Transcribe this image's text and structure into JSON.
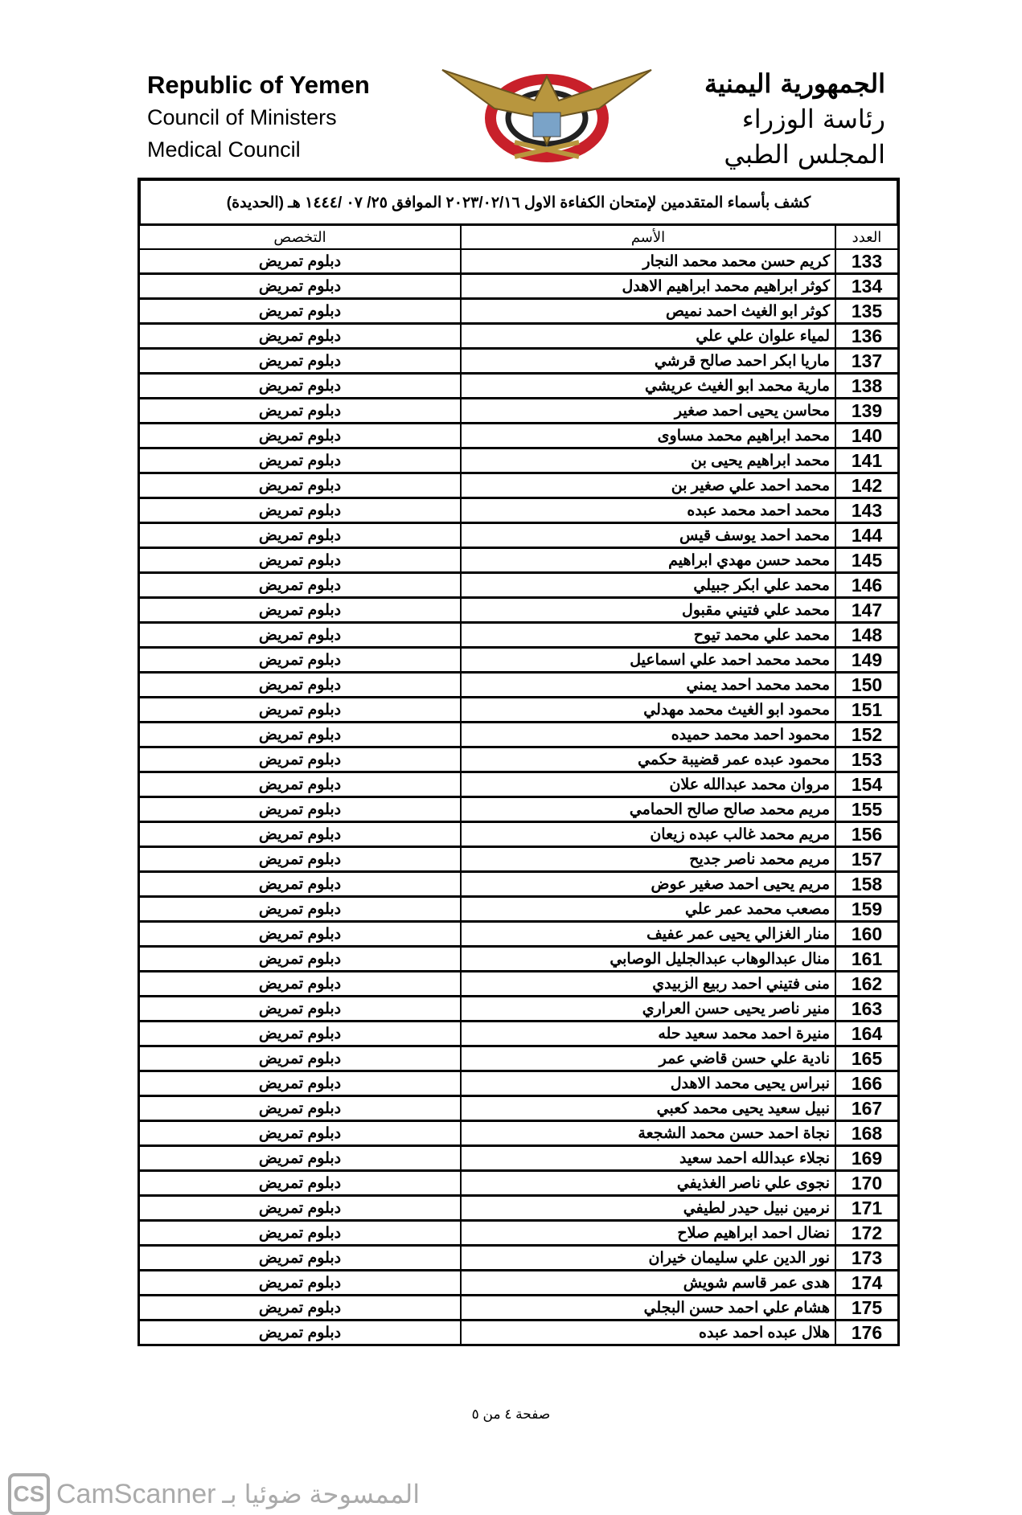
{
  "header": {
    "english": [
      "Republic of Yemen",
      "Council of Ministers",
      "Medical Council"
    ],
    "arabic": [
      "الجمهورية اليمنية",
      "رئاسة الوزراء",
      "المجلس الطبي"
    ],
    "emblem_icon": "yemen-eagle-emblem"
  },
  "title": "كشف بأسماء المتقدمين لإمتحان الكفاءة الاول ٢٠٢٣/٠٢/١٦ الموافق ٢٥/ ٠٧ /١٤٤٤ هـ (الحديدة)",
  "columns": {
    "number": "العدد",
    "name": "الأسم",
    "specialty": "التخصص"
  },
  "rows": [
    {
      "n": "133",
      "name": "كريم حسن محمد محمد النجار",
      "spec": "دبلوم تمريض"
    },
    {
      "n": "134",
      "name": "كوثر ابراهيم محمد ابراهيم الاهدل",
      "spec": "دبلوم تمريض"
    },
    {
      "n": "135",
      "name": "كوثر ابو الغيث احمد نميص",
      "spec": "دبلوم تمريض"
    },
    {
      "n": "136",
      "name": "لمياء علوان علي علي",
      "spec": "دبلوم تمريض"
    },
    {
      "n": "137",
      "name": "ماريا ابكر احمد صالح قرشي",
      "spec": "دبلوم تمريض"
    },
    {
      "n": "138",
      "name": "مارية محمد ابو الغيث عريشي",
      "spec": "دبلوم تمريض"
    },
    {
      "n": "139",
      "name": "محاسن يحيى احمد صغير",
      "spec": "دبلوم تمريض"
    },
    {
      "n": "140",
      "name": "محمد ابراهيم محمد مساوى",
      "spec": "دبلوم تمريض"
    },
    {
      "n": "141",
      "name": "محمد ابراهيم يحيى بن",
      "spec": "دبلوم تمريض"
    },
    {
      "n": "142",
      "name": "محمد احمد علي صغير بن",
      "spec": "دبلوم تمريض"
    },
    {
      "n": "143",
      "name": "محمد احمد محمد عبده",
      "spec": "دبلوم تمريض"
    },
    {
      "n": "144",
      "name": "محمد احمد يوسف قيس",
      "spec": "دبلوم تمريض"
    },
    {
      "n": "145",
      "name": "محمد حسن مهدي ابراهيم",
      "spec": "دبلوم تمريض"
    },
    {
      "n": "146",
      "name": "محمد علي ابكر جبيلي",
      "spec": "دبلوم تمريض"
    },
    {
      "n": "147",
      "name": "محمد علي فتيني مقبول",
      "spec": "دبلوم تمريض"
    },
    {
      "n": "148",
      "name": "محمد علي محمد تيوح",
      "spec": "دبلوم تمريض"
    },
    {
      "n": "149",
      "name": "محمد محمد احمد علي اسماعيل",
      "spec": "دبلوم تمريض"
    },
    {
      "n": "150",
      "name": "محمد محمد احمد يمني",
      "spec": "دبلوم تمريض"
    },
    {
      "n": "151",
      "name": "محمود ابو الغيث محمد مهدلي",
      "spec": "دبلوم تمريض"
    },
    {
      "n": "152",
      "name": "محمود احمد محمد حميده",
      "spec": "دبلوم تمريض"
    },
    {
      "n": "153",
      "name": "محمود عبده عمر قضيبة حكمي",
      "spec": "دبلوم تمريض"
    },
    {
      "n": "154",
      "name": "مروان محمد عبدالله علان",
      "spec": "دبلوم تمريض"
    },
    {
      "n": "155",
      "name": "مريم محمد صالح صالح الحمامي",
      "spec": "دبلوم تمريض"
    },
    {
      "n": "156",
      "name": "مريم محمد غالب عبده زيعان",
      "spec": "دبلوم تمريض"
    },
    {
      "n": "157",
      "name": "مريم محمد ناصر جديح",
      "spec": "دبلوم تمريض"
    },
    {
      "n": "158",
      "name": "مريم يحيى احمد صغير عوض",
      "spec": "دبلوم تمريض"
    },
    {
      "n": "159",
      "name": "مصعب محمد عمر علي",
      "spec": "دبلوم تمريض"
    },
    {
      "n": "160",
      "name": "منار الغزالي يحيى عمر عفيف",
      "spec": "دبلوم تمريض"
    },
    {
      "n": "161",
      "name": "منال عبدالوهاب عبدالجليل الوصابي",
      "spec": "دبلوم تمريض"
    },
    {
      "n": "162",
      "name": "منى فتيني احمد ربيع الزبيدي",
      "spec": "دبلوم تمريض"
    },
    {
      "n": "163",
      "name": "منير ناصر يحيى حسن العراري",
      "spec": "دبلوم تمريض"
    },
    {
      "n": "164",
      "name": "منيرة احمد محمد سعيد حله",
      "spec": "دبلوم تمريض"
    },
    {
      "n": "165",
      "name": "نادية علي حسن قاضي عمر",
      "spec": "دبلوم تمريض"
    },
    {
      "n": "166",
      "name": "نبراس يحيى محمد الاهدل",
      "spec": "دبلوم تمريض"
    },
    {
      "n": "167",
      "name": "نبيل سعيد يحيى محمد كعبي",
      "spec": "دبلوم تمريض"
    },
    {
      "n": "168",
      "name": "نجاة احمد حسن محمد الشجعة",
      "spec": "دبلوم تمريض"
    },
    {
      "n": "169",
      "name": "نجلاء عبدالله احمد سعيد",
      "spec": "دبلوم تمريض"
    },
    {
      "n": "170",
      "name": "نجوى علي ناصر الغذيفي",
      "spec": "دبلوم تمريض"
    },
    {
      "n": "171",
      "name": "نرمين نبيل حيدر لطيفي",
      "spec": "دبلوم تمريض"
    },
    {
      "n": "172",
      "name": "نضال احمد ابراهيم صلاح",
      "spec": "دبلوم تمريض"
    },
    {
      "n": "173",
      "name": "نور الدين علي سليمان خيران",
      "spec": "دبلوم تمريض"
    },
    {
      "n": "174",
      "name": "هدى عمر قاسم شويش",
      "spec": "دبلوم تمريض"
    },
    {
      "n": "175",
      "name": "هشام  علي احمد حسن البجلي",
      "spec": "دبلوم تمريض"
    },
    {
      "n": "176",
      "name": "هلال عبده احمد عبده",
      "spec": "دبلوم تمريض"
    }
  ],
  "footer": "صفحة ٤ من ٥",
  "watermark": {
    "logo": "CS",
    "name": "CamScanner",
    "arabic": "الممسوحة ضوئيا بـ"
  }
}
